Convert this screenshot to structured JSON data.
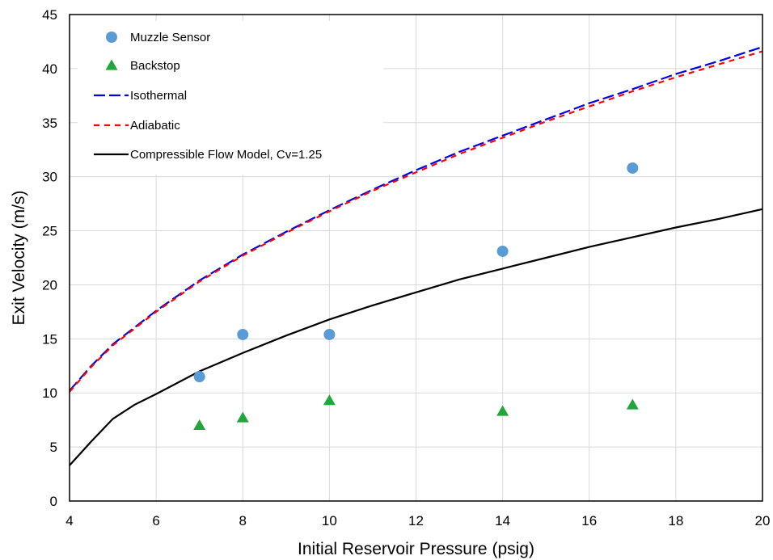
{
  "chart_data": {
    "type": "scatter",
    "xlabel": "Initial Reservoir Pressure (psig)",
    "ylabel": "Exit Velocity (m/s)",
    "xlim": [
      4,
      20
    ],
    "ylim": [
      0,
      45
    ],
    "xticks": [
      4,
      6,
      8,
      10,
      12,
      14,
      16,
      18,
      20
    ],
    "yticks": [
      0,
      5,
      10,
      15,
      20,
      25,
      30,
      35,
      40,
      45
    ],
    "grid": true,
    "legend_position": "top-left",
    "series": [
      {
        "name": "Muzzle Sensor",
        "kind": "scatter",
        "marker": "circle",
        "color": "#5b9bd5",
        "x": [
          7,
          8,
          10,
          14,
          17
        ],
        "y": [
          11.5,
          15.4,
          15.4,
          23.1,
          30.8
        ]
      },
      {
        "name": "Backstop",
        "kind": "scatter",
        "marker": "triangle",
        "color": "#22a63c",
        "x": [
          7,
          8,
          10,
          14,
          17
        ],
        "y": [
          7.0,
          7.7,
          9.3,
          8.3,
          8.9
        ]
      },
      {
        "name": "Isothermal",
        "kind": "line",
        "dash": "long",
        "color": "#0000e6",
        "x": [
          4,
          4.5,
          5,
          6,
          7,
          8,
          9,
          10,
          11,
          12,
          13,
          14,
          15,
          16,
          17,
          18,
          19,
          20
        ],
        "y": [
          10.2,
          12.5,
          14.5,
          17.6,
          20.4,
          22.8,
          24.9,
          26.9,
          28.8,
          30.6,
          32.3,
          33.8,
          35.3,
          36.8,
          38.1,
          39.5,
          40.7,
          42.0
        ]
      },
      {
        "name": "Adiabatic",
        "kind": "line",
        "dash": "short",
        "color": "#ff0000",
        "x": [
          4,
          4.5,
          5,
          6,
          7,
          8,
          9,
          10,
          11,
          12,
          13,
          14,
          15,
          16,
          17,
          18,
          19,
          20
        ],
        "y": [
          10.1,
          12.4,
          14.4,
          17.5,
          20.3,
          22.7,
          24.8,
          26.8,
          28.7,
          30.4,
          32.1,
          33.6,
          35.1,
          36.5,
          37.9,
          39.2,
          40.4,
          41.6
        ]
      },
      {
        "name": "Compressible Flow Model, Cv=1.25",
        "kind": "line",
        "dash": "solid",
        "color": "#000000",
        "x": [
          4,
          4.5,
          5,
          5.5,
          6,
          7,
          8,
          9,
          10,
          11,
          12,
          13,
          14,
          15,
          16,
          17,
          18,
          19,
          20
        ],
        "y": [
          3.3,
          5.5,
          7.6,
          8.9,
          9.9,
          12.0,
          13.7,
          15.3,
          16.8,
          18.1,
          19.3,
          20.5,
          21.5,
          22.5,
          23.5,
          24.4,
          25.3,
          26.1,
          27.0
        ]
      }
    ]
  }
}
